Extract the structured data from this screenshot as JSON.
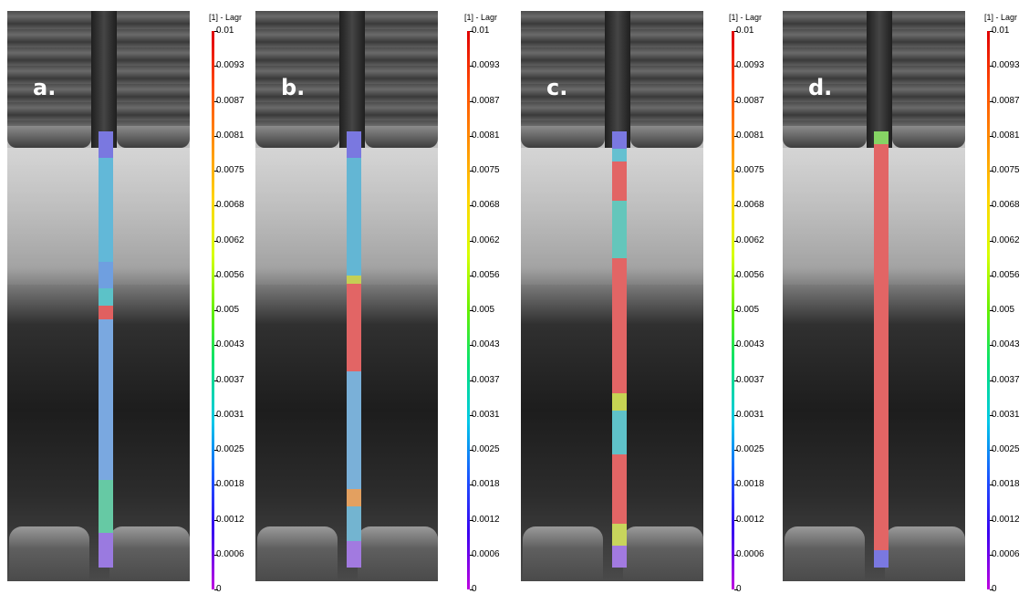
{
  "colorbar": {
    "header": "[1] - Lagr",
    "ticks": [
      "0.01",
      "0.0093",
      "0.0087",
      "0.0081",
      "0.0075",
      "0.0068",
      "0.0062",
      "0.0056",
      "0.005",
      "0.0043",
      "0.0037",
      "0.0031",
      "0.0025",
      "0.0018",
      "0.0012",
      "0.0006",
      "0"
    ]
  },
  "panels": [
    {
      "label": "a.",
      "specimen": [
        [
          "#7a78e0",
          0,
          0.06
        ],
        [
          "#62b8d8",
          0.06,
          0.3
        ],
        [
          "#6f9fe0",
          0.3,
          0.36
        ],
        [
          "#5cc2c8",
          0.36,
          0.4
        ],
        [
          "#e06060",
          0.4,
          0.43
        ],
        [
          "#7aa8e0",
          0.43,
          0.8
        ],
        [
          "#66c9a4",
          0.8,
          0.92
        ],
        [
          "#9a7ae0",
          0.92,
          1
        ]
      ]
    },
    {
      "label": "b.",
      "specimen": [
        [
          "#7a78e0",
          0,
          0.06
        ],
        [
          "#63b6d4",
          0.06,
          0.33
        ],
        [
          "#c4cf55",
          0.33,
          0.35
        ],
        [
          "#e26565",
          0.35,
          0.55
        ],
        [
          "#7ab0d8",
          0.55,
          0.82
        ],
        [
          "#e3a060",
          0.82,
          0.86
        ],
        [
          "#73b4d0",
          0.86,
          0.94
        ],
        [
          "#a27ae0",
          0.94,
          1
        ]
      ]
    },
    {
      "label": "c.",
      "specimen": [
        [
          "#7a78e0",
          0,
          0.04
        ],
        [
          "#65c0d0",
          0.04,
          0.07
        ],
        [
          "#e26565",
          0.07,
          0.16
        ],
        [
          "#64c6bb",
          0.16,
          0.29
        ],
        [
          "#e26565",
          0.29,
          0.6
        ],
        [
          "#c6d353",
          0.6,
          0.64
        ],
        [
          "#5fc2c9",
          0.64,
          0.74
        ],
        [
          "#e26565",
          0.74,
          0.9
        ],
        [
          "#c8d55c",
          0.9,
          0.95
        ],
        [
          "#a27ae0",
          0.95,
          1
        ]
      ]
    },
    {
      "label": "d.",
      "specimen": [
        [
          "#86d464",
          0,
          0.03
        ],
        [
          "#e26565",
          0.03,
          0.96
        ],
        [
          "#7a78e0",
          0.96,
          1
        ]
      ]
    }
  ]
}
